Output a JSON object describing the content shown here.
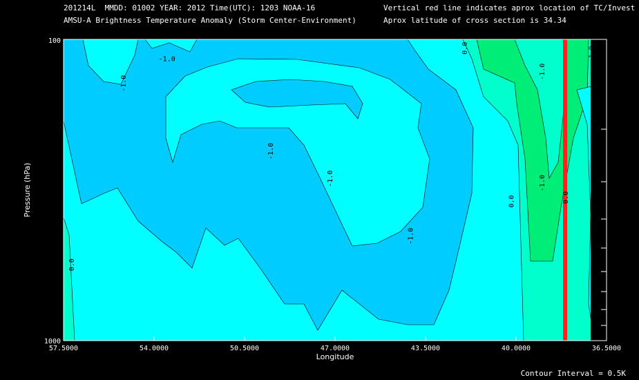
{
  "header": {
    "line1_left": "201214L  MMDD: 01002 YEAR: 2012 Time(UTC): 1203 NOAA-16",
    "line2_left": "AMSU-A Brightness Temperature Anomaly (Storm Center-Environment)",
    "line1_right": "Vertical red line indicates aprox location of TC/Invest",
    "line2_right": "Aprox latitude of cross section is 34.34"
  },
  "footer": {
    "contour_interval": "Contour Interval = 0.5K"
  },
  "colors": {
    "background": "#000000",
    "anom_minus_1_5": "#00ccff",
    "anom_minus_1_0": "#00ffff",
    "anom_minus_0_5": "#00ffcc",
    "anom_0_0": "#00ee77",
    "storm_line": "#ff2020"
  },
  "chart_data": {
    "type": "contour",
    "title": "AMSU-A Brightness Temperature Anomaly (Storm Center-Environment)",
    "xlabel": "Longitude",
    "ylabel": "Pressure (hPa)",
    "x_ticks": [
      "57.5000",
      "54.0000",
      "50.5000",
      "47.0000",
      "43.5000",
      "40.0000",
      "36.5000"
    ],
    "x_tick_values": [
      57.5,
      54.0,
      50.5,
      47.0,
      43.5,
      40.0,
      36.5
    ],
    "xlim": [
      57.5,
      36.5
    ],
    "y_ticks": [
      "100",
      "1000"
    ],
    "ylim": [
      1000,
      100
    ],
    "y_scale": "log",
    "storm_longitude": 38.1,
    "contour_interval": 0.5,
    "contour_labels": [
      {
        "text": "-1.0",
        "lon": 53.5,
        "p": 118
      },
      {
        "text": "-1.0",
        "lon": 55.1,
        "p": 140
      },
      {
        "text": "-1.0",
        "lon": 49.4,
        "p": 235
      },
      {
        "text": "-1.0",
        "lon": 47.1,
        "p": 290
      },
      {
        "text": "-1.0",
        "lon": 44.0,
        "p": 450
      },
      {
        "text": "-1.0",
        "lon": 38.9,
        "p": 128
      },
      {
        "text": "-1.0",
        "lon": 38.9,
        "p": 300
      },
      {
        "text": "-1.0",
        "lon": 37.0,
        "p": 112
      },
      {
        "text": "0.0",
        "lon": 57.1,
        "p": 560
      },
      {
        "text": "0.0",
        "lon": 41.9,
        "p": 107
      },
      {
        "text": "0.0",
        "lon": 40.1,
        "p": 345
      },
      {
        "text": "0.0",
        "lon": 38.0,
        "p": 335
      }
    ]
  }
}
